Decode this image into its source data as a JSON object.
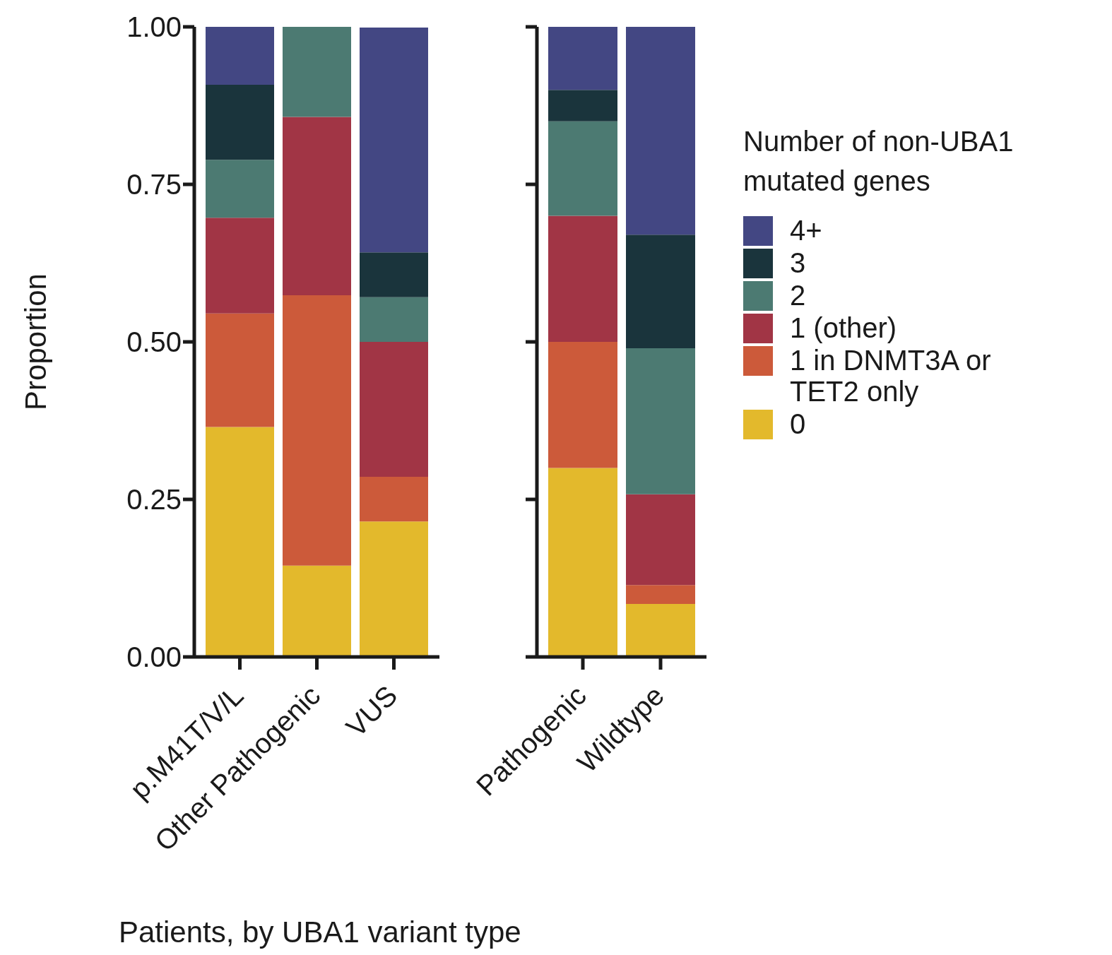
{
  "chart_data": [
    {
      "type": "bar",
      "stacked": true,
      "ylabel": "Proportion",
      "xlabel": "Patients, by UBA1 variant type",
      "categories": [
        "p.M41T/V/L",
        "Other Pathogenic",
        "VUS"
      ],
      "ylim": [
        0,
        1
      ],
      "yticks": [
        {
          "value": 0,
          "label": "0.00"
        },
        {
          "value": 0.25,
          "label": "0.25"
        },
        {
          "value": 0.5,
          "label": "0.50"
        },
        {
          "value": 0.75,
          "label": "0.75"
        },
        {
          "value": 1,
          "label": "1.00"
        }
      ],
      "series": [
        {
          "color": "#e3b92c",
          "values": [
            0.365,
            0.145,
            0.215
          ]
        },
        {
          "color": "#cc5a3a",
          "values": [
            0.18,
            0.429,
            0.071
          ]
        },
        {
          "color": "#a13545",
          "values": [
            0.152,
            0.283,
            0.214
          ]
        },
        {
          "color": "#4c7a72",
          "values": [
            0.092,
            0.143,
            0.071
          ]
        },
        {
          "color": "#1a343c",
          "values": [
            0.119,
            0,
            0.071
          ]
        },
        {
          "color": "#434783",
          "values": [
            0.092,
            0,
            0.357
          ]
        }
      ]
    },
    {
      "type": "bar",
      "stacked": true,
      "tick_labels": "x",
      "legend": "right",
      "legend_title": "Number of non-UBA1 mutated genes",
      "categories": [
        "Pathogenic",
        "Wildtype"
      ],
      "ylim": [
        0,
        1
      ],
      "yticks": [
        0,
        0.25,
        0.5,
        0.75,
        1
      ],
      "series": [
        {
          "name": "0",
          "color": "#e3b92c",
          "values": [
            0.3,
            0.084
          ]
        },
        {
          "name": "1 in DNMT3A or TET2 only",
          "color": "#cc5a3a",
          "values": [
            0.2,
            0.03
          ]
        },
        {
          "name": "1 (other)",
          "color": "#a13545",
          "values": [
            0.2,
            0.144
          ]
        },
        {
          "name": "2",
          "color": "#4c7a72",
          "values": [
            0.15,
            0.232
          ]
        },
        {
          "name": "3",
          "color": "#1a343c",
          "values": [
            0.05,
            0.18
          ]
        },
        {
          "name": "4+",
          "color": "#434783",
          "values": [
            0.1,
            0.33
          ]
        }
      ]
    }
  ]
}
